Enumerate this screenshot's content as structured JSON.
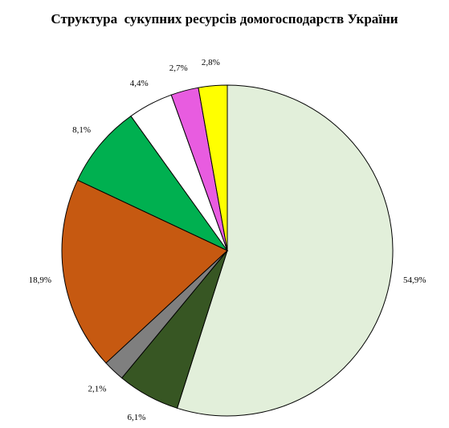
{
  "chart_data": {
    "type": "pie",
    "title": "Структура  сукупних ресурсів домогосподарств України",
    "slices": [
      {
        "label": "54,9%",
        "value": 54.9,
        "color": "#e2efda"
      },
      {
        "label": "6,1%",
        "value": 6.1,
        "color": "#375623"
      },
      {
        "label": "2,1%",
        "value": 2.1,
        "color": "#7f7f7f"
      },
      {
        "label": "18,9%",
        "value": 18.9,
        "color": "#c65911"
      },
      {
        "label": "8,1%",
        "value": 8.1,
        "color": "#00b050"
      },
      {
        "label": "4,4%",
        "value": 4.4,
        "color": "#ffffff"
      },
      {
        "label": "2,7%",
        "value": 2.7,
        "color": "#e85ce0"
      },
      {
        "label": "2,8%",
        "value": 2.8,
        "color": "#ffff00"
      }
    ],
    "start": "12 o'clock",
    "direction": "clockwise",
    "legend": "none"
  }
}
